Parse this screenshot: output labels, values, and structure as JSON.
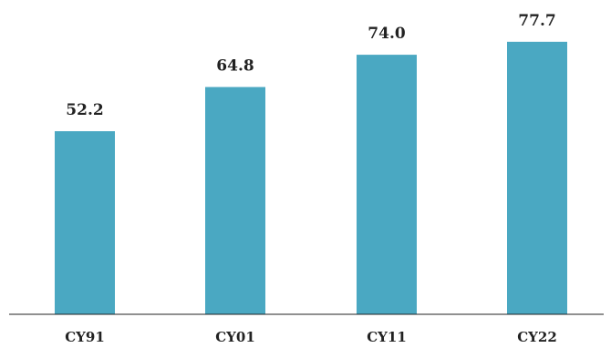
{
  "chart_data": {
    "type": "bar",
    "title": "",
    "xlabel": "",
    "ylabel": "",
    "categories": [
      "CY91",
      "CY01",
      "CY11",
      "CY22"
    ],
    "values": [
      52.2,
      64.8,
      74.0,
      77.7
    ],
    "value_labels": [
      "52.2",
      "64.8",
      "74.0",
      "77.7"
    ],
    "ylim": [
      0,
      100
    ],
    "grid": false,
    "legend": "none",
    "bar_color": "#4aa8c2"
  }
}
